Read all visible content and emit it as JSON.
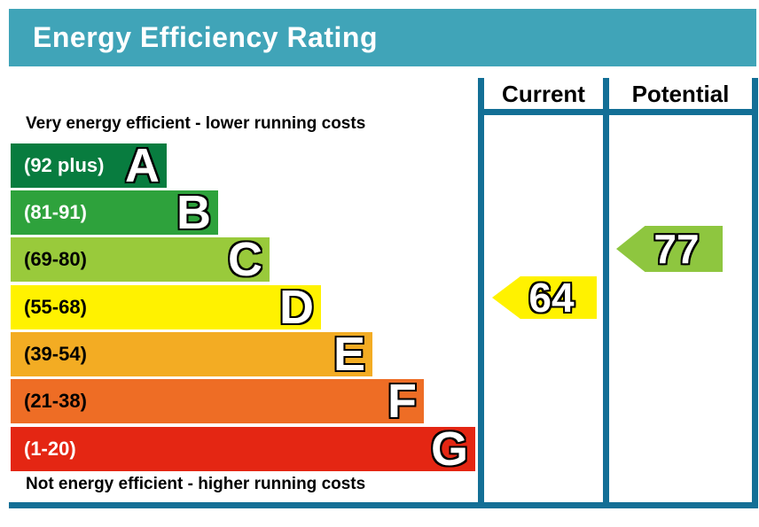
{
  "header": {
    "title": "Energy Efficiency Rating",
    "bg_color": "#40a4b8",
    "text_color": "#ffffff"
  },
  "columns": {
    "current_label": "Current",
    "potential_label": "Potential",
    "border_color": "#136f96"
  },
  "captions": {
    "top": "Very energy efficient - lower running costs",
    "bottom": "Not energy efficient - higher running costs"
  },
  "bands": [
    {
      "letter": "A",
      "label": "(92 plus)",
      "color": "#087c3f",
      "label_color": "#ffffff"
    },
    {
      "letter": "B",
      "label": "(81-91)",
      "color": "#2ea23c",
      "label_color": "#ffffff"
    },
    {
      "letter": "C",
      "label": "(69-80)",
      "color": "#99ca3b",
      "label_color": "#000000"
    },
    {
      "letter": "D",
      "label": "(55-68)",
      "color": "#fff200",
      "label_color": "#000000"
    },
    {
      "letter": "E",
      "label": "(39-54)",
      "color": "#f3ac23",
      "label_color": "#000000"
    },
    {
      "letter": "F",
      "label": "(21-38)",
      "color": "#ee6d25",
      "label_color": "#000000"
    },
    {
      "letter": "G",
      "label": "(1-20)",
      "color": "#e42613",
      "label_color": "#ffffff"
    }
  ],
  "arrows": {
    "current": {
      "value": "64",
      "color": "#fff200",
      "band": "D"
    },
    "potential": {
      "value": "77",
      "color": "#8ec63f",
      "band": "C"
    }
  },
  "chart_data": {
    "type": "bar",
    "title": "Energy Efficiency Rating",
    "categories": [
      "A (92 plus)",
      "B (81-91)",
      "C (69-80)",
      "D (55-68)",
      "E (39-54)",
      "F (21-38)",
      "G (1-20)"
    ],
    "band_colors": [
      "#087c3f",
      "#2ea23c",
      "#99ca3b",
      "#fff200",
      "#f3ac23",
      "#ee6d25",
      "#e42613"
    ],
    "columns": [
      "Current",
      "Potential"
    ],
    "current_rating": 64,
    "current_band": "D",
    "potential_rating": 77,
    "potential_band": "C",
    "top_caption": "Very energy efficient - lower running costs",
    "bottom_caption": "Not energy efficient - higher running costs",
    "legend_position": "none",
    "grid": false
  }
}
